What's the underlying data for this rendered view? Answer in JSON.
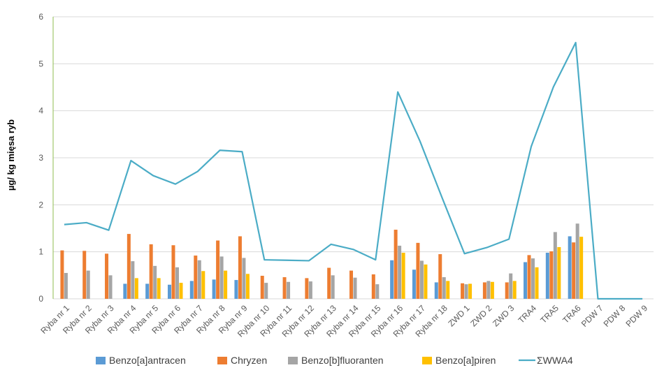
{
  "chart_data": {
    "type": "bar",
    "ylabel": "µg/ kg mięsa ryb",
    "xlabel": "",
    "ylim": [
      0,
      6
    ],
    "yticks": [
      "0",
      "1",
      "2",
      "3",
      "4",
      "5",
      "6"
    ],
    "grid": true,
    "legend_position": "bottom",
    "categories": [
      "Ryba nr 1",
      "Ryba nr 2",
      "Ryba nr 3",
      "Ryba nr 4",
      "Ryba nr 5",
      "Ryba nr 6",
      "Ryba nr 7",
      "Ryba nr 8",
      "Ryba nr 9",
      "Ryba nr 10",
      "Ryba nr 11",
      "Ryba nr 12",
      "Ryba nr 13",
      "Ryba nr 14",
      "Ryba nr 15",
      "Ryba nr 16",
      "Ryba nr 17",
      "Ryba nr 18",
      "ZWD 1",
      "ZWD 2",
      "ZWD 3",
      "TRA4",
      "TRA5",
      "TRA6",
      "PDW 7",
      "PDW 8",
      "PDW 9"
    ],
    "series": [
      {
        "name": "Benzo[a]antracen",
        "kind": "bar",
        "color": "#5B9BD5",
        "values": [
          0,
          0,
          0,
          0.32,
          0.32,
          0.3,
          0.38,
          0.41,
          0.4,
          0,
          0,
          0,
          0,
          0,
          0,
          0.82,
          0.62,
          0.35,
          0,
          0,
          0,
          0.78,
          0.98,
          1.33,
          0,
          0,
          0
        ]
      },
      {
        "name": "Chryzen",
        "kind": "bar",
        "color": "#ED7D31",
        "values": [
          1.03,
          1.02,
          0.96,
          1.38,
          1.16,
          1.14,
          0.92,
          1.24,
          1.33,
          0.49,
          0.46,
          0.44,
          0.66,
          0.6,
          0.52,
          1.47,
          1.19,
          0.95,
          0.33,
          0.35,
          0.35,
          0.93,
          1.01,
          1.2,
          0,
          0,
          0
        ]
      },
      {
        "name": "Benzo[b]fluoranten",
        "kind": "bar",
        "color": "#A5A5A5",
        "values": [
          0.55,
          0.6,
          0.5,
          0.8,
          0.7,
          0.67,
          0.82,
          0.9,
          0.87,
          0.34,
          0.36,
          0.37,
          0.5,
          0.45,
          0.31,
          1.13,
          0.81,
          0.46,
          0.31,
          0.38,
          0.54,
          0.86,
          1.42,
          1.6,
          0,
          0,
          0
        ]
      },
      {
        "name": "Benzo[a]piren",
        "kind": "bar",
        "color": "#FFC000",
        "values": [
          0,
          0,
          0,
          0.44,
          0.44,
          0.34,
          0.59,
          0.6,
          0.53,
          0,
          0,
          0,
          0,
          0,
          0,
          0.98,
          0.73,
          0.38,
          0.32,
          0.36,
          0.38,
          0.67,
          1.1,
          1.32,
          0,
          0,
          0
        ]
      },
      {
        "name": "ΣWWA4",
        "kind": "line",
        "color": "#4BACC6",
        "values": [
          1.58,
          1.62,
          1.46,
          2.94,
          2.62,
          2.44,
          2.71,
          3.16,
          3.13,
          0.83,
          0.82,
          0.81,
          1.16,
          1.05,
          0.83,
          4.4,
          3.35,
          2.14,
          0.96,
          1.09,
          1.27,
          3.24,
          4.51,
          5.45,
          0,
          0,
          0
        ]
      }
    ]
  }
}
